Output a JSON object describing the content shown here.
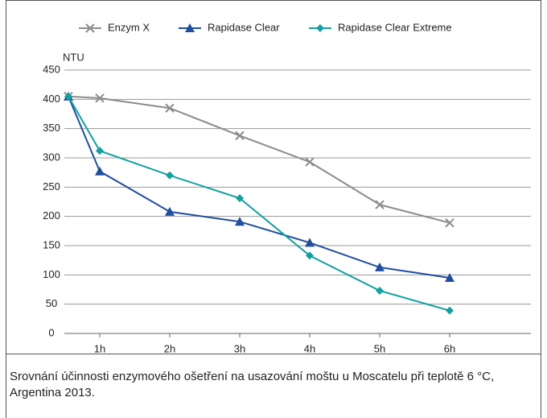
{
  "chart_data": {
    "type": "line",
    "ylabel": "NTU",
    "categories": [
      null,
      "1h",
      "2h",
      "3h",
      "4h",
      "5h",
      "6h"
    ],
    "series": [
      {
        "name": "Enzym X",
        "color": "#8c8c8c",
        "marker": "x",
        "values": [
          405,
          402,
          385,
          338,
          293,
          220,
          189
        ]
      },
      {
        "name": "Rapidase Clear",
        "color": "#1f4e9c",
        "marker": "triangle",
        "values": [
          405,
          277,
          208,
          191,
          155,
          113,
          95
        ]
      },
      {
        "name": "Rapidase Clear Extreme",
        "color": "#14a0a0",
        "marker": "diamond",
        "values": [
          405,
          312,
          270,
          231,
          133,
          73,
          39
        ]
      }
    ],
    "ylim": [
      0,
      450
    ],
    "yticks": [
      0,
      50,
      100,
      150,
      200,
      250,
      300,
      350,
      400,
      450
    ],
    "grid": true,
    "legend": "top",
    "caption": "Srovnání účinnosti enzymového ošetření na usazování moštu u Moscatelu při teplotě 6 °C, Argentina 2013."
  }
}
